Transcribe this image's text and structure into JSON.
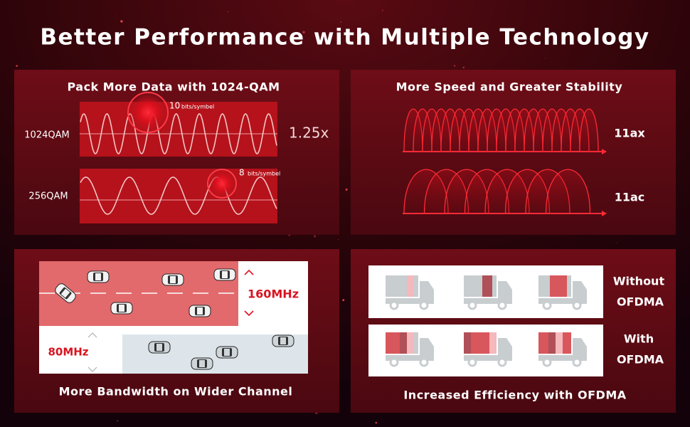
{
  "header": {
    "title": "Better Performance with Multiple Technology"
  },
  "panels": [
    {
      "title": "Pack More Data with 1024-QAM",
      "rows": [
        {
          "label": "1024QAM",
          "bits": "10",
          "unit": "bits/symbel"
        },
        {
          "label": "256QAM",
          "bits": "8",
          "unit": "bits/symbel"
        }
      ],
      "ratio": "1.25x"
    },
    {
      "title": "More Speed and Greater Stability",
      "rows": [
        {
          "label": "11ax"
        },
        {
          "label": "11ac"
        }
      ]
    },
    {
      "title": "More Bandwidth on Wider Channel",
      "rows": [
        {
          "label": "160MHz"
        },
        {
          "label": "80MHz"
        }
      ]
    },
    {
      "title": "Increased Efficiency with OFDMA",
      "rows": [
        {
          "label": [
            "Without",
            "OFDMA"
          ]
        },
        {
          "label": [
            "With",
            "OFDMA"
          ]
        }
      ]
    }
  ]
}
